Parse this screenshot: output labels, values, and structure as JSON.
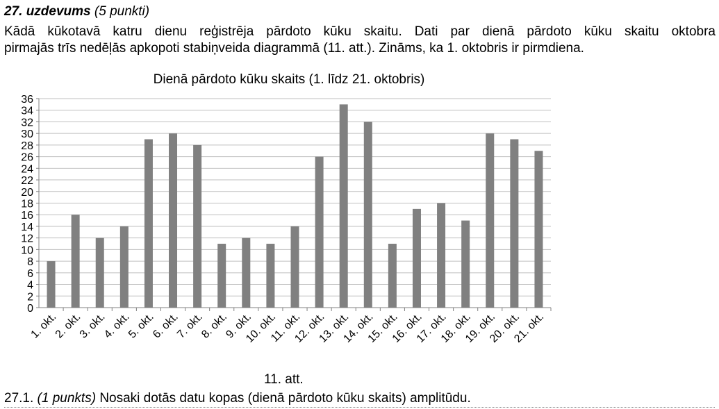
{
  "task": {
    "number": "27. uzdevums",
    "points": "(5 punkti)",
    "text_line1": "Kādā kūkotavā katru dienu reģistrēja pārdoto kūku skaitu. Dati par dienā pārdoto kūku skaitu oktobra",
    "text_line2": "pirmajās trīs nedēļās apkopoti stabiņveida diagrammā (11. att.). Zināms, ka 1. oktobris ir pirmdiena."
  },
  "chart_data": {
    "type": "bar",
    "title": "Dienā pārdoto kūku skaits (1. līdz 21. oktobris)",
    "categories": [
      "1. okt.",
      "2. okt.",
      "3. okt.",
      "4. okt.",
      "5. okt.",
      "6. okt.",
      "7. okt.",
      "8. okt.",
      "9. okt.",
      "10. okt.",
      "11. okt.",
      "12. okt.",
      "13. okt.",
      "14. okt.",
      "15. okt.",
      "16. okt.",
      "17. okt.",
      "18. okt.",
      "19. okt.",
      "20. okt.",
      "21. okt."
    ],
    "values": [
      8,
      16,
      12,
      14,
      29,
      30,
      28,
      11,
      12,
      11,
      14,
      26,
      35,
      32,
      11,
      17,
      18,
      15,
      30,
      29,
      27
    ],
    "ylim": [
      0,
      36
    ],
    "yticks": [
      0,
      2,
      4,
      6,
      8,
      10,
      12,
      14,
      16,
      18,
      20,
      22,
      24,
      26,
      28,
      30,
      32,
      34,
      36
    ],
    "grid": true,
    "bar_color": "#808080",
    "grid_color": "#bfbfbf"
  },
  "figure_caption": "11. att.",
  "question": {
    "number": "27.1.",
    "points": "(1 punkts)",
    "text": "Nosaki dotās datu kopas (dienā pārdoto kūku skaits) amplitūdu."
  }
}
